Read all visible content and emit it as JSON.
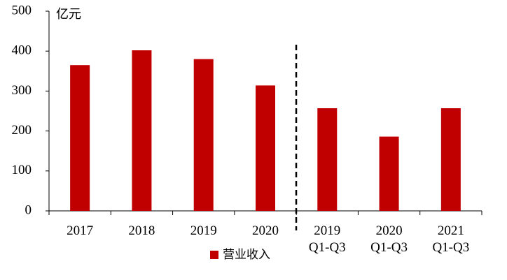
{
  "chart_data": {
    "type": "bar",
    "y_label": "亿元",
    "categories": [
      "2017",
      "2018",
      "2019",
      "2020",
      "2019\nQ1-Q3",
      "2020\nQ1-Q3",
      "2021\nQ1-Q3"
    ],
    "series": [
      {
        "name": "营业收入",
        "color": "#c00000",
        "values": [
          365,
          402,
          380,
          314,
          257,
          186,
          257
        ]
      }
    ],
    "ylim": [
      0,
      500
    ],
    "yticks": [
      0,
      100,
      200,
      300,
      400,
      500
    ],
    "legend": "bottom"
  }
}
